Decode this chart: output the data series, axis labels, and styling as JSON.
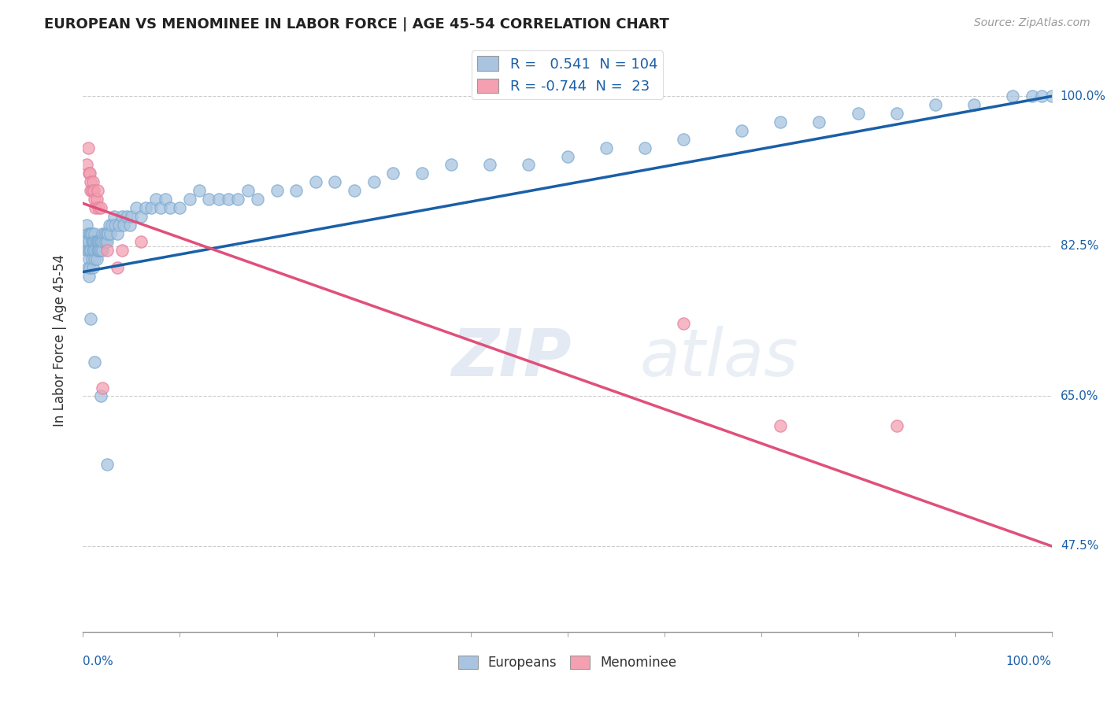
{
  "title": "EUROPEAN VS MENOMINEE IN LABOR FORCE | AGE 45-54 CORRELATION CHART",
  "source": "Source: ZipAtlas.com",
  "ylabel": "In Labor Force | Age 45-54",
  "ytick_labels": [
    "47.5%",
    "65.0%",
    "82.5%",
    "100.0%"
  ],
  "ytick_values": [
    0.475,
    0.65,
    0.825,
    1.0
  ],
  "xmin": 0.0,
  "xmax": 1.0,
  "ymin": 0.375,
  "ymax": 1.055,
  "european_R": 0.541,
  "european_N": 104,
  "menominee_R": -0.744,
  "menominee_N": 23,
  "european_color": "#a8c4e0",
  "menominee_color": "#f4a0b0",
  "blue_line_color": "#1a5fa8",
  "pink_line_color": "#e0507a",
  "legend_label_european": "R =   0.541  N = 104",
  "legend_label_menominee": "R = -0.744  N =  23",
  "legend_sublabel_european": "Europeans",
  "legend_sublabel_menominee": "Menominee",
  "eu_line_x0": 0.0,
  "eu_line_x1": 1.0,
  "eu_line_y0": 0.795,
  "eu_line_y1": 1.0,
  "me_line_x0": 0.0,
  "me_line_x1": 1.0,
  "me_line_y0": 0.875,
  "me_line_y1": 0.475,
  "european_x": [
    0.003,
    0.004,
    0.004,
    0.005,
    0.005,
    0.005,
    0.006,
    0.006,
    0.006,
    0.007,
    0.007,
    0.007,
    0.008,
    0.008,
    0.009,
    0.009,
    0.009,
    0.01,
    0.01,
    0.01,
    0.011,
    0.011,
    0.012,
    0.012,
    0.013,
    0.013,
    0.014,
    0.014,
    0.015,
    0.015,
    0.016,
    0.016,
    0.017,
    0.017,
    0.018,
    0.018,
    0.019,
    0.02,
    0.02,
    0.021,
    0.022,
    0.023,
    0.024,
    0.025,
    0.026,
    0.027,
    0.028,
    0.03,
    0.032,
    0.033,
    0.035,
    0.037,
    0.04,
    0.042,
    0.045,
    0.048,
    0.05,
    0.055,
    0.06,
    0.065,
    0.07,
    0.075,
    0.08,
    0.085,
    0.09,
    0.1,
    0.11,
    0.12,
    0.13,
    0.14,
    0.15,
    0.16,
    0.17,
    0.18,
    0.2,
    0.22,
    0.24,
    0.26,
    0.28,
    0.3,
    0.32,
    0.35,
    0.38,
    0.42,
    0.46,
    0.5,
    0.54,
    0.58,
    0.62,
    0.68,
    0.72,
    0.76,
    0.8,
    0.84,
    0.88,
    0.92,
    0.96,
    0.98,
    0.99,
    1.0,
    0.008,
    0.012,
    0.018,
    0.025
  ],
  "european_y": [
    0.83,
    0.85,
    0.82,
    0.84,
    0.82,
    0.8,
    0.83,
    0.81,
    0.79,
    0.84,
    0.82,
    0.8,
    0.84,
    0.82,
    0.84,
    0.83,
    0.81,
    0.83,
    0.82,
    0.8,
    0.83,
    0.82,
    0.84,
    0.81,
    0.83,
    0.82,
    0.83,
    0.81,
    0.83,
    0.82,
    0.83,
    0.82,
    0.83,
    0.82,
    0.83,
    0.82,
    0.83,
    0.84,
    0.82,
    0.83,
    0.84,
    0.83,
    0.84,
    0.83,
    0.84,
    0.85,
    0.84,
    0.85,
    0.86,
    0.85,
    0.84,
    0.85,
    0.86,
    0.85,
    0.86,
    0.85,
    0.86,
    0.87,
    0.86,
    0.87,
    0.87,
    0.88,
    0.87,
    0.88,
    0.87,
    0.87,
    0.88,
    0.89,
    0.88,
    0.88,
    0.88,
    0.88,
    0.89,
    0.88,
    0.89,
    0.89,
    0.9,
    0.9,
    0.89,
    0.9,
    0.91,
    0.91,
    0.92,
    0.92,
    0.92,
    0.93,
    0.94,
    0.94,
    0.95,
    0.96,
    0.97,
    0.97,
    0.98,
    0.98,
    0.99,
    0.99,
    1.0,
    1.0,
    1.0,
    1.0,
    0.74,
    0.69,
    0.65,
    0.57
  ],
  "menominee_x": [
    0.004,
    0.005,
    0.006,
    0.007,
    0.008,
    0.008,
    0.009,
    0.01,
    0.011,
    0.012,
    0.013,
    0.014,
    0.015,
    0.016,
    0.018,
    0.02,
    0.025,
    0.035,
    0.04,
    0.06,
    0.62,
    0.72,
    0.84
  ],
  "menominee_y": [
    0.92,
    0.94,
    0.91,
    0.91,
    0.9,
    0.89,
    0.89,
    0.9,
    0.89,
    0.88,
    0.87,
    0.88,
    0.89,
    0.87,
    0.87,
    0.66,
    0.82,
    0.8,
    0.82,
    0.83,
    0.735,
    0.615,
    0.615
  ]
}
